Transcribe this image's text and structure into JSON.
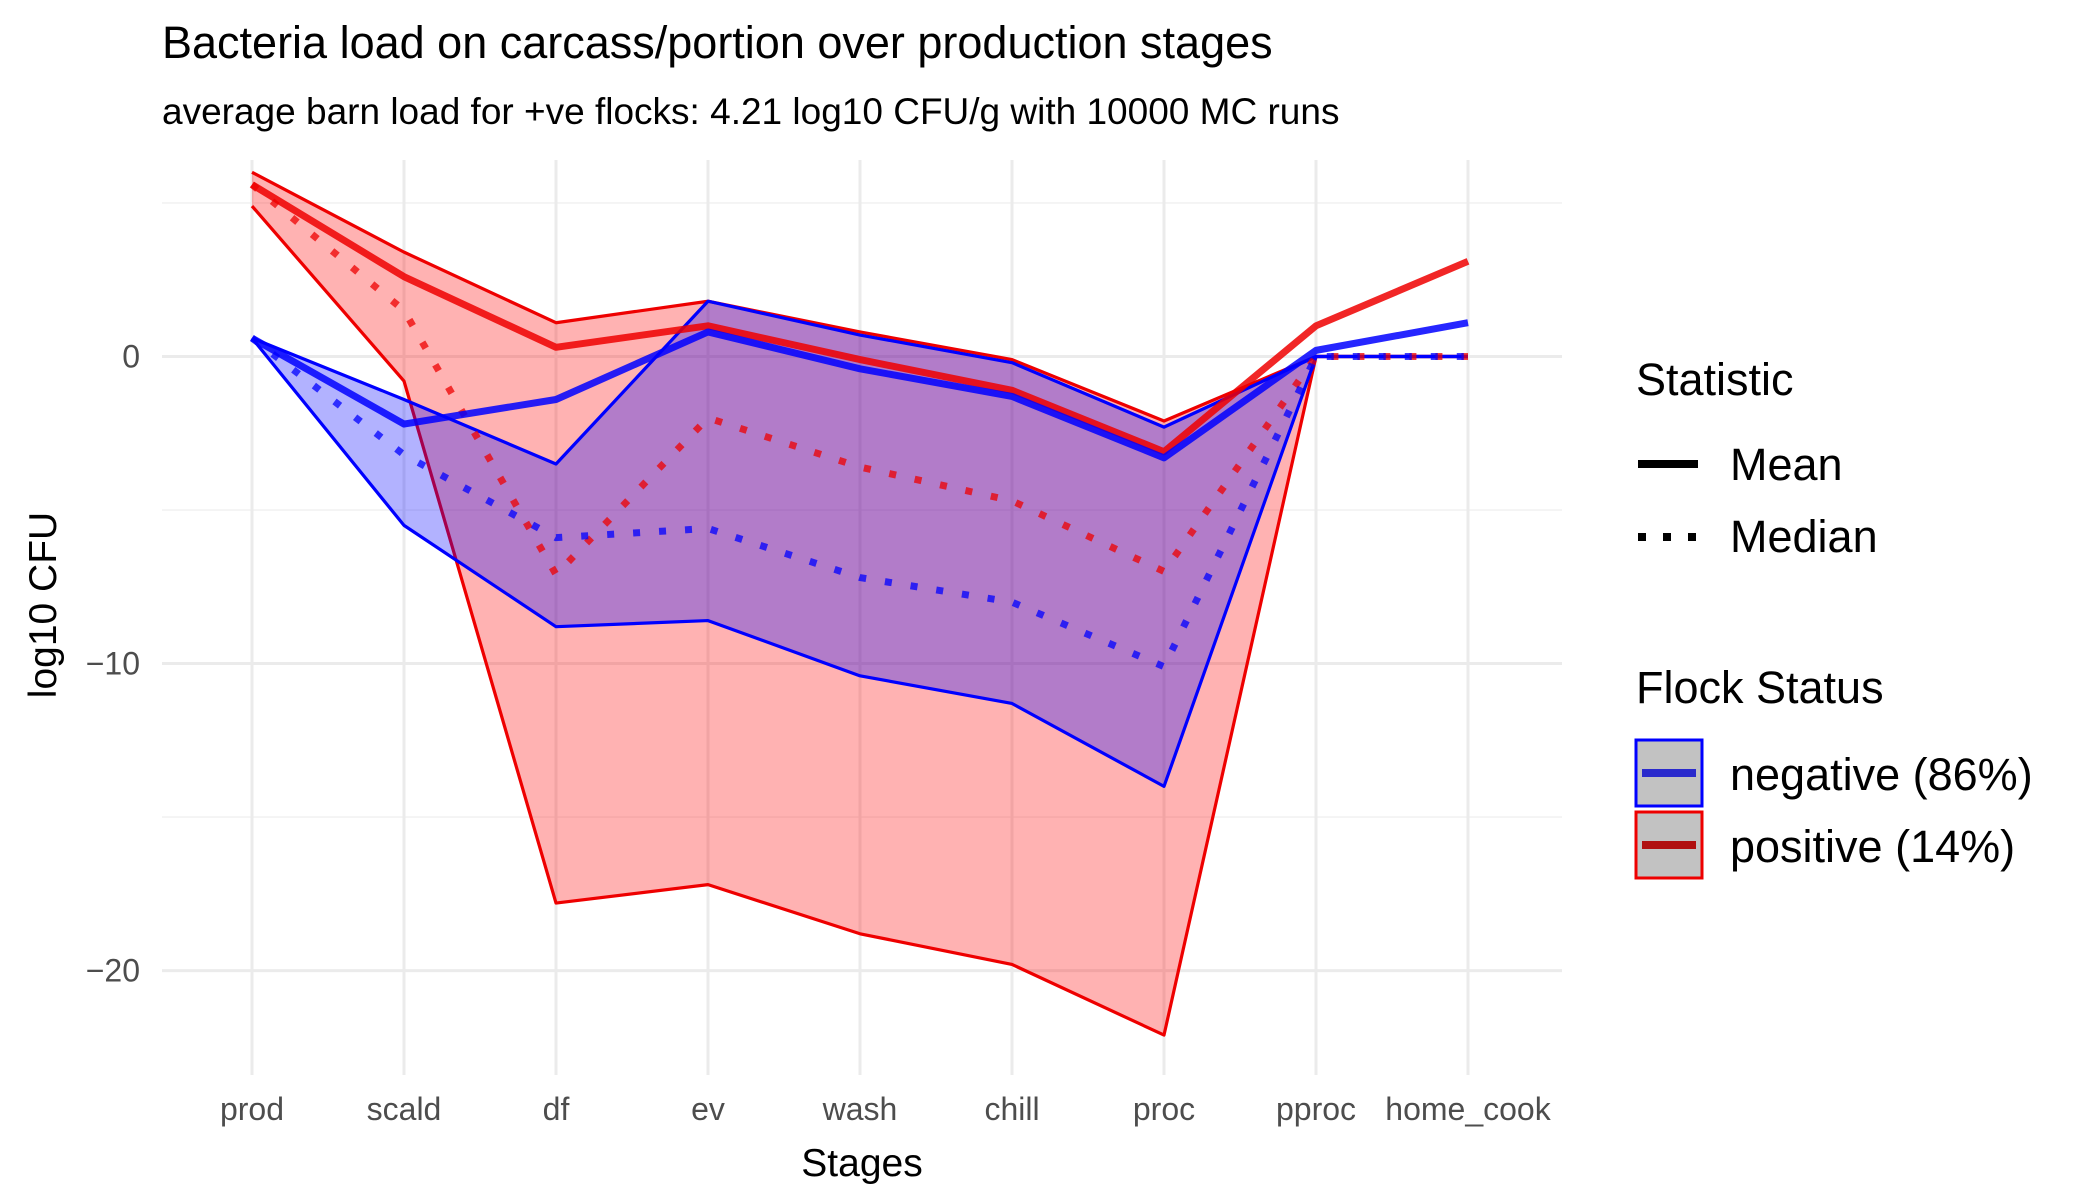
{
  "chart_data": {
    "type": "line",
    "title": "Bacteria load on carcass/portion over production stages",
    "subtitle": "average barn load for +ve flocks: 4.21 log10 CFU/g with 10000 MC runs",
    "xlabel": "Stages",
    "ylabel": "log10 CFU",
    "categories": [
      "prod",
      "scald",
      "df",
      "ev",
      "wash",
      "chill",
      "proc",
      "pproc",
      "home_cook"
    ],
    "ylim": [
      -23.4,
      6.4
    ],
    "yticks": [
      0,
      -10,
      -20
    ],
    "ytick_labels": [
      "0",
      "−10",
      "−20"
    ],
    "grid": true,
    "series": [
      {
        "name": "negative (86%)",
        "color": "#0000ff",
        "fill": "#0000ff",
        "mean": [
          0.6,
          -2.2,
          -1.4,
          0.8,
          -0.4,
          -1.3,
          -3.3,
          0.2,
          1.1
        ],
        "median": [
          0.6,
          -3.2,
          -5.9,
          -5.6,
          -7.2,
          -8.0,
          -10.1,
          0.0,
          0.0
        ],
        "upper": [
          0.6,
          -1.4,
          -3.5,
          1.8,
          0.7,
          -0.2,
          -2.3,
          0.0,
          0.0
        ],
        "lower": [
          0.6,
          -5.5,
          -8.8,
          -8.6,
          -10.4,
          -11.3,
          -14.0,
          0.0,
          0.0
        ]
      },
      {
        "name": "positive (14%)",
        "color": "#ee0000",
        "fill": "#ff0000",
        "mean": [
          5.6,
          2.6,
          0.3,
          1.0,
          -0.1,
          -1.1,
          -3.1,
          1.0,
          3.1
        ],
        "median": [
          5.6,
          1.5,
          -7.1,
          -2.0,
          -3.6,
          -4.7,
          -7.0,
          0.0,
          0.0
        ],
        "upper": [
          6.0,
          3.4,
          1.1,
          1.8,
          0.8,
          -0.1,
          -2.1,
          0.0,
          0.0
        ],
        "lower": [
          4.9,
          -0.8,
          -17.8,
          -17.2,
          -18.8,
          -19.8,
          -22.1,
          0.0,
          0.0
        ]
      }
    ],
    "legend": {
      "placement": "right",
      "statistic_title": "Statistic",
      "statistic_items": [
        "Mean",
        "Median"
      ],
      "flock_title": "Flock Status",
      "flock_items": [
        "negative (86%)",
        "positive (14%)"
      ]
    }
  }
}
